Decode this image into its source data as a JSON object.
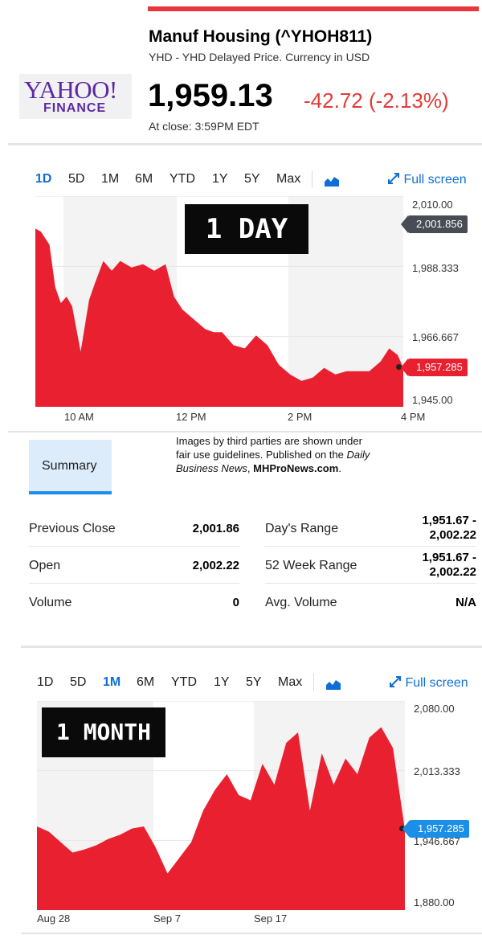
{
  "header": {
    "logo_text": "YAHOO!",
    "logo_sub": "FINANCE",
    "title": "Manuf Housing (^YHOH811)",
    "subtitle": "YHD - YHD Delayed Price. Currency in USD",
    "price": "1,959.13",
    "change": "-42.72 (-2.13%)",
    "at_close": "At close: 3:59PM EDT",
    "colors": {
      "accent_red": "#e13b36",
      "brand_purple": "#5b2aa3",
      "link_blue": "#0f6ed6"
    }
  },
  "chart1": {
    "ranges": [
      "1D",
      "5D",
      "1M",
      "6M",
      "YTD",
      "1Y",
      "5Y",
      "Max"
    ],
    "active_range": "1D",
    "chart_type_icon": "area-chart-icon",
    "fullscreen_label": "Full screen",
    "stamp": "1 DAY",
    "prev_close_tag": "2,001.856",
    "last_tag": "1,957.285",
    "y_ticks": [
      "2,010.00",
      "1,988.333",
      "1,966.667",
      "1,945.00"
    ],
    "x_ticks": [
      "10 AM",
      "12 PM",
      "2 PM",
      "4 PM"
    ]
  },
  "credit": {
    "line1": "Images by third parties are shown under",
    "line2_pre": "fair use guidelines.  Published on the ",
    "line2_italic": "Daily",
    "line3_italic": "Business News",
    "line3_bold": "MHProNews.com"
  },
  "summary": {
    "tab_label": "Summary",
    "left": [
      {
        "label": "Previous Close",
        "value": "2,001.86"
      },
      {
        "label": "Open",
        "value": "2,002.22"
      },
      {
        "label": "Volume",
        "value": "0"
      }
    ],
    "right": [
      {
        "label": "Day's Range",
        "value_line1": "1,951.67 -",
        "value_line2": "2,002.22"
      },
      {
        "label": "52 Week Range",
        "value_line1": "1,951.67 -",
        "value_line2": "2,002.22"
      },
      {
        "label": "Avg. Volume",
        "value_line1": "N/A",
        "value_line2": ""
      }
    ]
  },
  "chart2": {
    "ranges": [
      "1D",
      "5D",
      "1M",
      "6M",
      "YTD",
      "1Y",
      "5Y",
      "Max"
    ],
    "active_range": "1M",
    "chart_type_icon": "area-chart-icon",
    "fullscreen_label": "Full screen",
    "stamp": "1 MONTH",
    "last_tag": "1,957.285",
    "y_ticks": [
      "2,080.00",
      "2,013.333",
      "1,946.667",
      "1,880.00"
    ],
    "x_ticks": [
      "Aug 28",
      "Sep 7",
      "Sep 17"
    ]
  },
  "chart_data": [
    {
      "type": "area",
      "ylim": [
        1945,
        2010
      ],
      "ticks_y": [
        2010,
        1988.333,
        1966.667,
        1945
      ],
      "x_hours": [
        9.5,
        9.6,
        9.75,
        9.85,
        9.95,
        10.05,
        10.15,
        10.3,
        10.45,
        10.55,
        10.7,
        10.85,
        11.0,
        11.2,
        11.4,
        11.6,
        11.8,
        11.95,
        12.1,
        12.3,
        12.5,
        12.65,
        12.8,
        13.0,
        13.2,
        13.4,
        13.6,
        13.8,
        14.0,
        14.2,
        14.4,
        14.6,
        14.8,
        15.0,
        15.2,
        15.4,
        15.6,
        15.75,
        15.9,
        16.0
      ],
      "values": [
        2000,
        1999,
        1995,
        1982,
        1977,
        1979,
        1976,
        1962,
        1978,
        1983,
        1990,
        1987,
        1990,
        1988,
        1989,
        1987,
        1989,
        1979,
        1975,
        1972,
        1969,
        1968,
        1968,
        1964,
        1963,
        1967,
        1964,
        1958,
        1955,
        1953,
        1954,
        1957,
        1955,
        1956,
        1956,
        1956,
        1959,
        1963,
        1961,
        1957
      ]
    },
    {
      "type": "area",
      "ylim": [
        1880,
        2080
      ],
      "ticks_y": [
        2080,
        2013.333,
        1946.667,
        1880
      ],
      "x_day": [
        0,
        1,
        2,
        3,
        4,
        5,
        6,
        7,
        8,
        9,
        10,
        11,
        12,
        13,
        14,
        15,
        16,
        17,
        18,
        19,
        20,
        21,
        22,
        23,
        24,
        25,
        26,
        27,
        28,
        29,
        30,
        31
      ],
      "values": [
        1960,
        1955,
        1945,
        1935,
        1938,
        1942,
        1948,
        1952,
        1958,
        1960,
        1940,
        1915,
        1930,
        1945,
        1975,
        1995,
        2010,
        1990,
        1985,
        2020,
        2000,
        2040,
        2050,
        1975,
        2030,
        2000,
        2025,
        2010,
        2045,
        2055,
        2035,
        1957
      ]
    }
  ]
}
